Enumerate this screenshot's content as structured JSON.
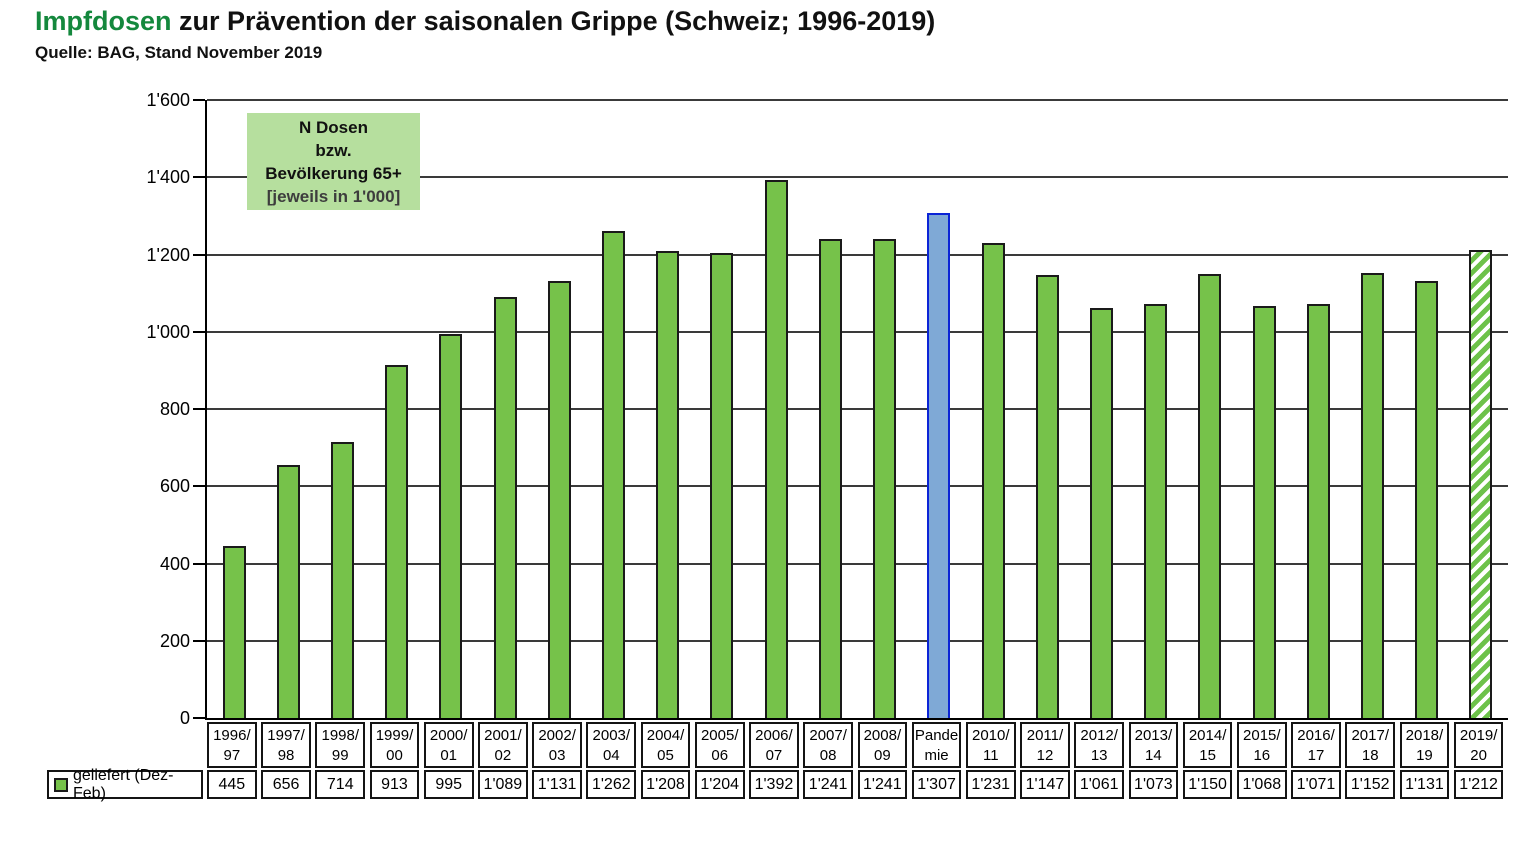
{
  "title": {
    "highlight": "Impfdosen",
    "rest": " zur Prävention der saisonalen Grippe (Schweiz; 1996-2019)"
  },
  "subtitle": "Quelle: BAG, Stand November 2019",
  "annotation": {
    "lines": [
      "N Dosen",
      "bzw.",
      "Bevölkerung 65+",
      "[jeweils in 1'000]"
    ],
    "bg_color": "#b6df9e"
  },
  "legend": {
    "label": "geliefert (Dez-Feb)",
    "swatch_color": "#76c24a"
  },
  "chart_data": {
    "type": "bar",
    "title": "Impfdosen zur Prävention der saisonalen Grippe (Schweiz; 1996-2019)",
    "series_name": "geliefert (Dez-Feb)",
    "categories": [
      "1996/97",
      "1997/98",
      "1998/99",
      "1999/00",
      "2000/01",
      "2001/02",
      "2002/03",
      "2003/04",
      "2004/05",
      "2005/06",
      "2006/07",
      "2007/08",
      "2008/09",
      "Pandemie",
      "2010/11",
      "2011/12",
      "2012/13",
      "2013/14",
      "2014/15",
      "2015/16",
      "2016/17",
      "2017/18",
      "2018/19",
      "2019/20"
    ],
    "category_labels": [
      [
        "1996/",
        "97"
      ],
      [
        "1997/",
        "98"
      ],
      [
        "1998/",
        "99"
      ],
      [
        "1999/",
        "00"
      ],
      [
        "2000/",
        "01"
      ],
      [
        "2001/",
        "02"
      ],
      [
        "2002/",
        "03"
      ],
      [
        "2003/",
        "04"
      ],
      [
        "2004/",
        "05"
      ],
      [
        "2005/",
        "06"
      ],
      [
        "2006/",
        "07"
      ],
      [
        "2007/",
        "08"
      ],
      [
        "2008/",
        "09"
      ],
      [
        "Pande",
        "mie"
      ],
      [
        "2010/",
        "11"
      ],
      [
        "2011/",
        "12"
      ],
      [
        "2012/",
        "13"
      ],
      [
        "2013/",
        "14"
      ],
      [
        "2014/",
        "15"
      ],
      [
        "2015/",
        "16"
      ],
      [
        "2016/",
        "17"
      ],
      [
        "2017/",
        "18"
      ],
      [
        "2018/",
        "19"
      ],
      [
        "2019/",
        "20"
      ]
    ],
    "values": [
      445,
      656,
      714,
      913,
      995,
      1089,
      1131,
      1262,
      1208,
      1204,
      1392,
      1241,
      1241,
      1307,
      1231,
      1147,
      1061,
      1073,
      1150,
      1068,
      1071,
      1152,
      1131,
      1212
    ],
    "display_values": [
      "445",
      "656",
      "714",
      "913",
      "995",
      "1'089",
      "1'131",
      "1'262",
      "1'208",
      "1'204",
      "1'392",
      "1'241",
      "1'241",
      "1'307",
      "1'231",
      "1'147",
      "1'061",
      "1'073",
      "1'150",
      "1'068",
      "1'071",
      "1'152",
      "1'131",
      "1'212"
    ],
    "ylabel": "N Dosen bzw. Bevölkerung 65+ [jeweils in 1'000]",
    "ylim": [
      0,
      1600
    ],
    "y_ticks": [
      "0",
      "200",
      "400",
      "600",
      "800",
      "1'000",
      "1'200",
      "1'400",
      "1'600"
    ],
    "y_step": 200,
    "grid": true,
    "legend_position": "bottom-left data table",
    "bar_color": "#76c24a",
    "bar_border_color": "#1a1a1a",
    "highlight_bar": {
      "index": 13,
      "label": "Pandemie",
      "fill": "#7fa9d6",
      "border": "#0b24d6"
    },
    "hatched_bar": {
      "index": 23,
      "label": "2019/20",
      "stripe_color": "#6dc24a",
      "pattern": "diagonal-stripes"
    }
  }
}
